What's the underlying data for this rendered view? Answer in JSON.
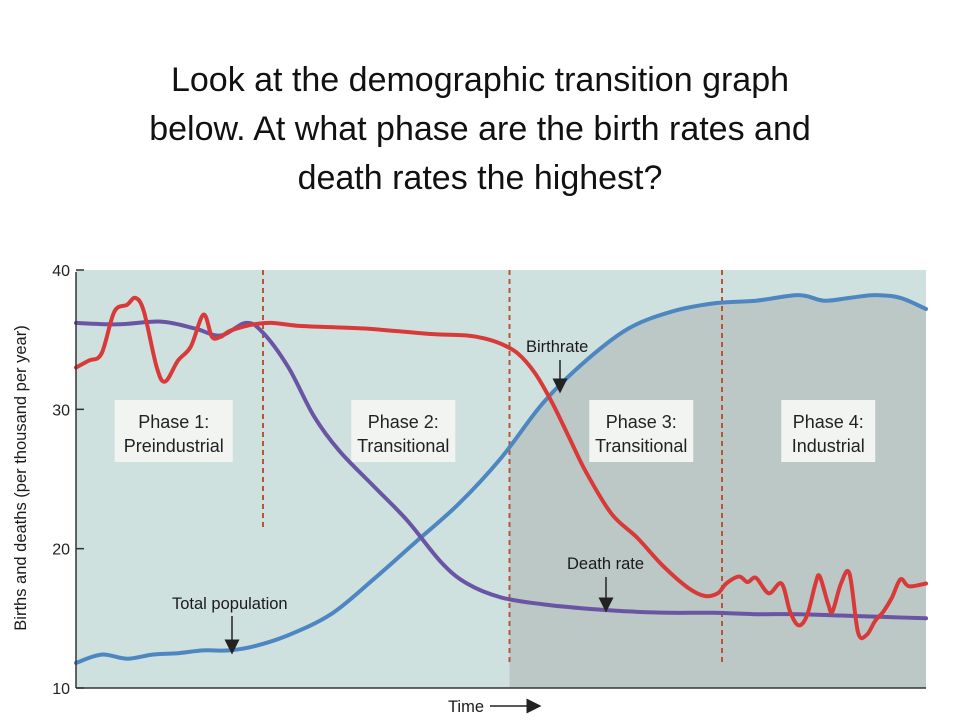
{
  "question": {
    "lines": [
      "Look at the demographic transition graph",
      "below.  At what phase are the birth rates and",
      "death rates the highest?"
    ]
  },
  "chart_data": {
    "type": "line",
    "xlabel": "Time",
    "ylabel": "Births and deaths (per thousand per year)",
    "ylim": [
      10,
      40
    ],
    "y_ticks": [
      "10",
      "20",
      "30",
      "40"
    ],
    "x_ticks": [],
    "grid": false,
    "phases": [
      {
        "line1": "Phase 1:",
        "line2": "Preindustrial"
      },
      {
        "line1": "Phase 2:",
        "line2": "Transitional"
      },
      {
        "line1": "Phase 3:",
        "line2": "Transitional"
      },
      {
        "line1": "Phase 4:",
        "line2": "Industrial"
      }
    ],
    "phase_boundaries": [
      0.22,
      0.51,
      0.76
    ],
    "annotations": {
      "birthrate": "Birthrate",
      "death_rate": "Death rate",
      "total_population": "Total population"
    },
    "colors": {
      "birthrate": "#d83a3a",
      "death_rate": "#6a55a4",
      "total_population": "#4d86c0",
      "background": "#cfe1df",
      "shaded_area": "#bcc8c6",
      "phase_divider": "#b5563b"
    },
    "series": [
      {
        "key": "birthrate",
        "x": [
          0.0,
          0.015,
          0.03,
          0.045,
          0.06,
          0.07,
          0.08,
          0.095,
          0.105,
          0.12,
          0.135,
          0.15,
          0.16,
          0.17,
          0.18,
          0.195,
          0.21,
          0.23,
          0.26,
          0.3,
          0.34,
          0.38,
          0.42,
          0.46,
          0.48,
          0.5,
          0.52,
          0.54,
          0.56,
          0.58,
          0.6,
          0.63,
          0.66,
          0.69,
          0.72,
          0.74,
          0.755,
          0.765,
          0.78,
          0.79,
          0.8,
          0.815,
          0.83,
          0.84,
          0.85,
          0.86,
          0.87,
          0.875,
          0.885,
          0.89,
          0.9,
          0.91,
          0.92,
          0.93,
          0.94,
          0.95,
          0.96,
          0.97,
          0.98,
          1.0
        ],
        "values": [
          33,
          33.5,
          34,
          37,
          37.5,
          38,
          37,
          33,
          32,
          33.5,
          34.5,
          36.8,
          35.2,
          35.2,
          35.6,
          35.9,
          36.1,
          36.2,
          36.0,
          35.9,
          35.8,
          35.6,
          35.4,
          35.3,
          35.1,
          34.7,
          34,
          32.6,
          30.5,
          28,
          25.5,
          22.5,
          20.8,
          18.8,
          17.2,
          16.6,
          16.8,
          17.5,
          18.0,
          17.6,
          17.9,
          16.8,
          17.5,
          15.5,
          14.5,
          15.2,
          17.5,
          18.0,
          16.0,
          15.5,
          17.5,
          18.2,
          14.0,
          13.8,
          14.8,
          15.5,
          16.5,
          17.8,
          17.3,
          17.5
        ]
      },
      {
        "key": "death_rate",
        "x": [
          0.0,
          0.05,
          0.1,
          0.14,
          0.17,
          0.2,
          0.22,
          0.25,
          0.28,
          0.31,
          0.35,
          0.39,
          0.43,
          0.46,
          0.5,
          0.55,
          0.6,
          0.65,
          0.7,
          0.75,
          0.8,
          0.85,
          0.9,
          0.95,
          1.0
        ],
        "values": [
          36.2,
          36.1,
          36.3,
          35.8,
          35.3,
          36.2,
          35.5,
          33.0,
          29.5,
          27.0,
          24.5,
          22.0,
          19.0,
          17.5,
          16.5,
          16.0,
          15.7,
          15.5,
          15.4,
          15.4,
          15.3,
          15.3,
          15.2,
          15.1,
          15.0
        ]
      },
      {
        "key": "total_population",
        "x": [
          0.0,
          0.03,
          0.06,
          0.09,
          0.12,
          0.15,
          0.18,
          0.21,
          0.25,
          0.3,
          0.35,
          0.4,
          0.45,
          0.5,
          0.55,
          0.6,
          0.65,
          0.7,
          0.75,
          0.8,
          0.85,
          0.88,
          0.91,
          0.94,
          0.97,
          1.0
        ],
        "values": [
          11.8,
          12.4,
          12.1,
          12.4,
          12.5,
          12.7,
          12.7,
          13.0,
          13.8,
          15.3,
          17.8,
          20.5,
          23.2,
          26.5,
          30.5,
          33.5,
          35.8,
          37.0,
          37.6,
          37.8,
          38.2,
          37.8,
          38.0,
          38.2,
          38.0,
          37.2
        ]
      }
    ]
  }
}
